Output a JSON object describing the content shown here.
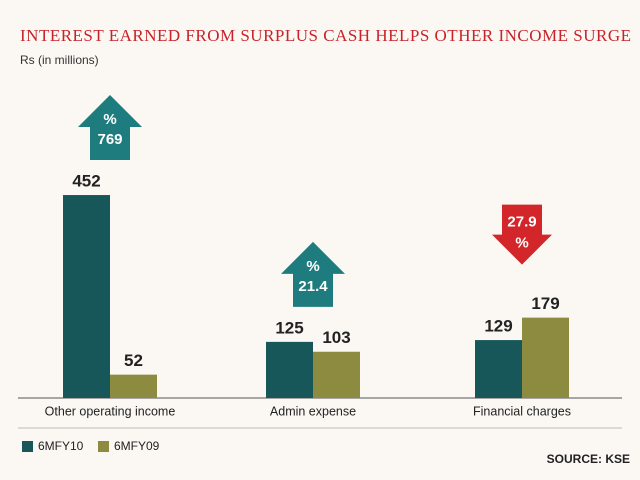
{
  "chart_data": {
    "type": "bar",
    "title": "INTEREST EARNED FROM SURPLUS CASH HELPS OTHER INCOME SURGE",
    "subtitle": "Rs (in millions)",
    "source": "SOURCE: KSE",
    "categories": [
      "Other operating income",
      "Admin expense",
      "Financial charges"
    ],
    "series": [
      {
        "name": "6MFY10",
        "color": "#175659",
        "values": [
          452,
          125,
          129
        ]
      },
      {
        "name": "6MFY09",
        "color": "#8d8b3f",
        "values": [
          52,
          103,
          179
        ]
      }
    ],
    "ylim": [
      0,
      500
    ],
    "legend": "bottom-left",
    "annotations": [
      {
        "symbol": "%",
        "text": "769",
        "direction": "up",
        "color": "#1e7c7f"
      },
      {
        "symbol": "%",
        "text": "21.4",
        "direction": "up",
        "color": "#1e7c7f"
      },
      {
        "symbol": "%",
        "text": "27.9",
        "direction": "down",
        "color": "#d3262b"
      }
    ]
  }
}
